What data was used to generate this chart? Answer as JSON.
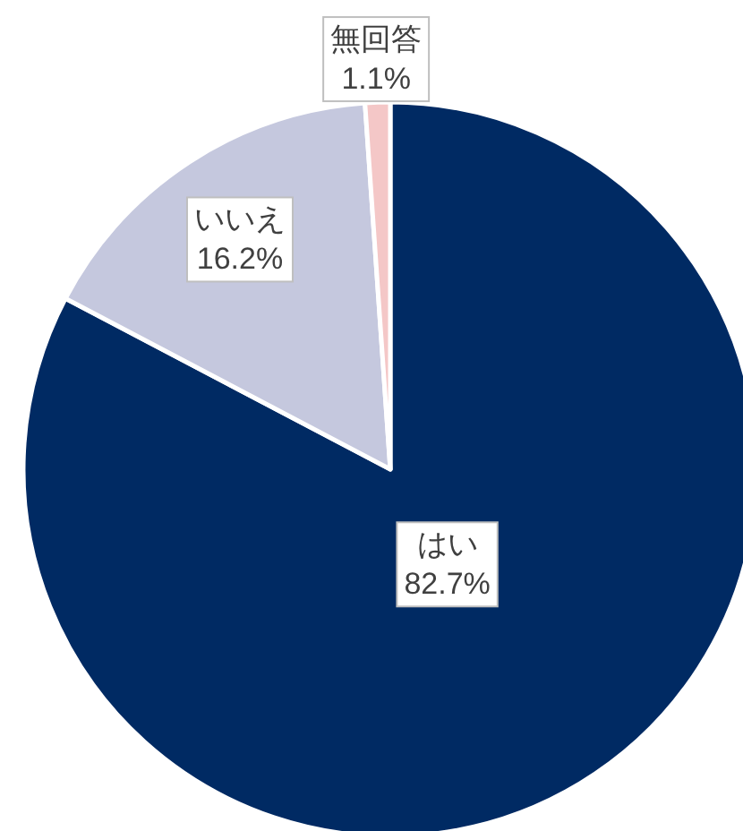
{
  "chart_data": {
    "type": "pie",
    "categories": [
      "はい",
      "いいえ",
      "無回答"
    ],
    "values": [
      82.7,
      16.2,
      1.1
    ],
    "colors": [
      "#002a63",
      "#c5c8de",
      "#f4c7c7"
    ],
    "value_labels": [
      "82.7%",
      "16.2%",
      "1.1%"
    ]
  }
}
